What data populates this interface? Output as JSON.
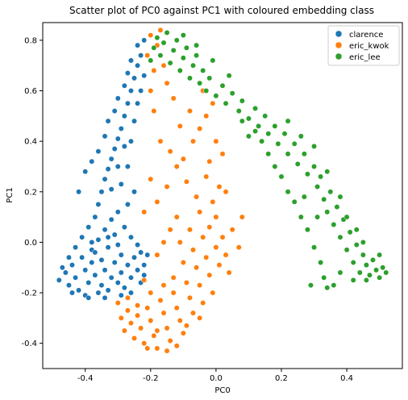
{
  "colors": {
    "clarence": "#1f77b4",
    "eric_kwok": "#ff7f0e",
    "eric_lee": "#2ca02c"
  },
  "chart_data": {
    "type": "scatter",
    "title": "Scatter plot of PC0 against PC1 with coloured embedding class",
    "xlabel": "PC0",
    "ylabel": "PC1",
    "xlim": [
      -0.53,
      0.57
    ],
    "ylim": [
      -0.5,
      0.87
    ],
    "xticks": [
      "-0.4",
      "-0.2",
      "0.0",
      "0.2",
      "0.4"
    ],
    "xtick_values": [
      -0.4,
      -0.2,
      0.0,
      0.2,
      0.4
    ],
    "yticks": [
      "-0.4",
      "-0.2",
      "0.0",
      "0.2",
      "0.4",
      "0.6",
      "0.8"
    ],
    "ytick_values": [
      -0.4,
      -0.2,
      0.0,
      0.2,
      0.4,
      0.6,
      0.8
    ],
    "grid": false,
    "legend": "top-right",
    "series": [
      {
        "name": "clarence",
        "color": "#1f77b4",
        "points": [
          [
            -0.48,
            -0.15
          ],
          [
            -0.46,
            -0.12
          ],
          [
            -0.45,
            -0.17
          ],
          [
            -0.44,
            -0.09
          ],
          [
            -0.43,
            -0.14
          ],
          [
            -0.42,
            -0.19
          ],
          [
            -0.41,
            -0.06
          ],
          [
            -0.4,
            -0.11
          ],
          [
            -0.4,
            -0.21
          ],
          [
            -0.39,
            -0.16
          ],
          [
            -0.38,
            -0.08
          ],
          [
            -0.38,
            -0.03
          ],
          [
            -0.37,
            -0.13
          ],
          [
            -0.36,
            -0.2
          ],
          [
            -0.36,
            0.01
          ],
          [
            -0.35,
            -0.07
          ],
          [
            -0.35,
            -0.17
          ],
          [
            -0.34,
            0.05
          ],
          [
            -0.34,
            -0.11
          ],
          [
            -0.33,
            -0.02
          ],
          [
            -0.33,
            -0.19
          ],
          [
            -0.32,
            0.09
          ],
          [
            -0.32,
            -0.14
          ],
          [
            -0.31,
            0.03
          ],
          [
            -0.31,
            -0.08
          ],
          [
            -0.3,
            -0.16
          ],
          [
            -0.3,
            0.12
          ],
          [
            -0.29,
            -0.05
          ],
          [
            -0.29,
            -0.12
          ],
          [
            -0.28,
            0.06
          ],
          [
            -0.28,
            -0.18
          ],
          [
            -0.27,
            -0.09
          ],
          [
            -0.27,
            0.15
          ],
          [
            -0.26,
            -0.14
          ],
          [
            -0.25,
            -0.06
          ],
          [
            -0.25,
            0.2
          ],
          [
            -0.24,
            -0.11
          ],
          [
            -0.23,
            -0.04
          ],
          [
            -0.22,
            -0.09
          ],
          [
            -0.21,
            -0.05
          ],
          [
            -0.41,
            0.02
          ],
          [
            -0.39,
            0.06
          ],
          [
            -0.37,
            0.1
          ],
          [
            -0.36,
            0.15
          ],
          [
            -0.35,
            0.2
          ],
          [
            -0.34,
            0.25
          ],
          [
            -0.33,
            0.29
          ],
          [
            -0.32,
            0.33
          ],
          [
            -0.31,
            0.37
          ],
          [
            -0.3,
            0.41
          ],
          [
            -0.29,
            0.45
          ],
          [
            -0.28,
            0.5
          ],
          [
            -0.27,
            0.55
          ],
          [
            -0.26,
            0.6
          ],
          [
            -0.25,
            0.65
          ],
          [
            -0.24,
            0.7
          ],
          [
            -0.23,
            0.74
          ],
          [
            -0.24,
            0.78
          ],
          [
            -0.22,
            0.8
          ],
          [
            -0.4,
            0.28
          ],
          [
            -0.42,
            0.2
          ],
          [
            -0.38,
            0.32
          ],
          [
            -0.36,
            0.36
          ],
          [
            -0.34,
            0.42
          ],
          [
            -0.33,
            0.48
          ],
          [
            -0.31,
            0.52
          ],
          [
            -0.3,
            0.57
          ],
          [
            -0.28,
            0.62
          ],
          [
            -0.27,
            0.67
          ],
          [
            -0.26,
            0.72
          ],
          [
            -0.29,
            0.23
          ],
          [
            -0.3,
            0.3
          ],
          [
            -0.32,
            0.21
          ],
          [
            -0.27,
            0.3
          ],
          [
            -0.26,
            0.4
          ],
          [
            -0.25,
            0.48
          ],
          [
            -0.24,
            0.55
          ],
          [
            -0.23,
            0.6
          ],
          [
            -0.22,
            0.66
          ],
          [
            -0.28,
            0.38
          ],
          [
            -0.37,
            -0.04
          ],
          [
            -0.43,
            -0.02
          ],
          [
            -0.45,
            -0.06
          ],
          [
            -0.47,
            -0.1
          ],
          [
            -0.44,
            -0.2
          ],
          [
            -0.39,
            -0.22
          ],
          [
            -0.34,
            -0.22
          ],
          [
            -0.29,
            -0.21
          ],
          [
            -0.26,
            -0.2
          ],
          [
            -0.23,
            -0.16
          ],
          [
            -0.22,
            -0.13
          ],
          [
            -0.24,
            -0.01
          ],
          [
            -0.26,
            0.02
          ],
          [
            -0.3,
            -0.01
          ],
          [
            -0.33,
            0.02
          ],
          [
            -0.38,
            0.0
          ]
        ]
      },
      {
        "name": "eric_kwok",
        "color": "#ff7f0e",
        "points": [
          [
            -0.3,
            -0.24
          ],
          [
            -0.29,
            -0.3
          ],
          [
            -0.28,
            -0.35
          ],
          [
            -0.27,
            -0.27
          ],
          [
            -0.26,
            -0.32
          ],
          [
            -0.25,
            -0.38
          ],
          [
            -0.24,
            -0.29
          ],
          [
            -0.23,
            -0.34
          ],
          [
            -0.22,
            -0.4
          ],
          [
            -0.21,
            -0.26
          ],
          [
            -0.2,
            -0.31
          ],
          [
            -0.19,
            -0.37
          ],
          [
            -0.18,
            -0.42
          ],
          [
            -0.17,
            -0.23
          ],
          [
            -0.16,
            -0.28
          ],
          [
            -0.15,
            -0.34
          ],
          [
            -0.14,
            -0.39
          ],
          [
            -0.13,
            -0.2
          ],
          [
            -0.12,
            -0.26
          ],
          [
            -0.11,
            -0.31
          ],
          [
            -0.1,
            -0.36
          ],
          [
            -0.09,
            -0.16
          ],
          [
            -0.08,
            -0.22
          ],
          [
            -0.07,
            -0.28
          ],
          [
            -0.06,
            -0.1
          ],
          [
            -0.05,
            -0.17
          ],
          [
            -0.04,
            -0.24
          ],
          [
            -0.03,
            -0.06
          ],
          [
            -0.02,
            -0.13
          ],
          [
            -0.01,
            -0.2
          ],
          [
            0.0,
            -0.02
          ],
          [
            0.01,
            -0.09
          ],
          [
            0.02,
            0.02
          ],
          [
            0.03,
            -0.05
          ],
          [
            0.04,
            -0.12
          ],
          [
            -0.21,
            -0.42
          ],
          [
            -0.18,
            -0.35
          ],
          [
            -0.15,
            -0.43
          ],
          [
            -0.12,
            -0.41
          ],
          [
            -0.09,
            -0.33
          ],
          [
            -0.05,
            -0.3
          ],
          [
            -0.27,
            -0.22
          ],
          [
            -0.24,
            -0.25
          ],
          [
            -0.2,
            -0.2
          ],
          [
            -0.16,
            -0.17
          ],
          [
            -0.13,
            -0.14
          ],
          [
            -0.1,
            -0.08
          ],
          [
            -0.07,
            -0.03
          ],
          [
            -0.04,
            0.02
          ],
          [
            -0.02,
            0.06
          ],
          [
            0.0,
            0.1
          ],
          [
            -0.01,
            0.16
          ],
          [
            0.01,
            0.22
          ],
          [
            -0.03,
            0.26
          ],
          [
            0.03,
            0.2
          ],
          [
            -0.05,
            0.12
          ],
          [
            -0.08,
            0.05
          ],
          [
            -0.11,
            0.0
          ],
          [
            0.05,
            0.05
          ],
          [
            0.07,
            -0.02
          ],
          [
            0.08,
            0.1
          ],
          [
            -0.06,
            0.18
          ],
          [
            -0.09,
            0.24
          ],
          [
            -0.12,
            0.3
          ],
          [
            -0.14,
            0.36
          ],
          [
            -0.1,
            0.33
          ],
          [
            -0.07,
            0.4
          ],
          [
            -0.05,
            0.45
          ],
          [
            -0.03,
            0.5
          ],
          [
            -0.01,
            0.55
          ],
          [
            -0.04,
            0.6
          ],
          [
            -0.08,
            0.52
          ],
          [
            -0.11,
            0.46
          ],
          [
            -0.15,
            0.22
          ],
          [
            -0.18,
            0.16
          ],
          [
            -0.2,
            0.25
          ],
          [
            -0.22,
            0.12
          ],
          [
            -0.17,
            0.4
          ],
          [
            -0.19,
            0.52
          ],
          [
            -0.2,
            0.6
          ],
          [
            -0.19,
            0.68
          ],
          [
            -0.21,
            0.74
          ],
          [
            -0.18,
            0.78
          ],
          [
            -0.17,
            0.84
          ],
          [
            -0.2,
            0.82
          ],
          [
            -0.16,
            0.7
          ],
          [
            -0.15,
            0.63
          ],
          [
            -0.13,
            0.57
          ],
          [
            0.0,
            0.4
          ],
          [
            0.02,
            0.35
          ],
          [
            -0.02,
            0.32
          ],
          [
            -0.12,
            0.1
          ],
          [
            -0.14,
            0.05
          ],
          [
            -0.16,
            0.0
          ],
          [
            -0.18,
            -0.05
          ],
          [
            -0.22,
            -0.15
          ]
        ]
      },
      {
        "name": "eric_lee",
        "color": "#2ca02c",
        "points": [
          [
            -0.2,
            0.72
          ],
          [
            -0.19,
            0.77
          ],
          [
            -0.18,
            0.81
          ],
          [
            -0.17,
            0.74
          ],
          [
            -0.16,
            0.79
          ],
          [
            -0.15,
            0.83
          ],
          [
            -0.14,
            0.71
          ],
          [
            -0.13,
            0.76
          ],
          [
            -0.12,
            0.8
          ],
          [
            -0.11,
            0.68
          ],
          [
            -0.1,
            0.73
          ],
          [
            -0.09,
            0.77
          ],
          [
            -0.08,
            0.65
          ],
          [
            -0.07,
            0.7
          ],
          [
            -0.06,
            0.74
          ],
          [
            -0.05,
            0.63
          ],
          [
            -0.04,
            0.68
          ],
          [
            -0.03,
            0.6
          ],
          [
            -0.02,
            0.65
          ],
          [
            0.0,
            0.58
          ],
          [
            0.02,
            0.62
          ],
          [
            0.03,
            0.55
          ],
          [
            0.05,
            0.59
          ],
          [
            0.07,
            0.52
          ],
          [
            0.08,
            0.56
          ],
          [
            0.1,
            0.49
          ],
          [
            0.12,
            0.53
          ],
          [
            0.13,
            0.46
          ],
          [
            0.15,
            0.5
          ],
          [
            0.16,
            0.43
          ],
          [
            0.18,
            0.46
          ],
          [
            0.19,
            0.39
          ],
          [
            0.21,
            0.43
          ],
          [
            0.22,
            0.35
          ],
          [
            0.24,
            0.39
          ],
          [
            0.25,
            0.31
          ],
          [
            0.27,
            0.35
          ],
          [
            0.28,
            0.27
          ],
          [
            0.3,
            0.3
          ],
          [
            0.31,
            0.22
          ],
          [
            0.32,
            0.26
          ],
          [
            0.33,
            0.17
          ],
          [
            0.34,
            0.12
          ],
          [
            0.35,
            0.2
          ],
          [
            0.36,
            0.07
          ],
          [
            0.37,
            0.14
          ],
          [
            0.38,
            0.02
          ],
          [
            0.39,
            0.09
          ],
          [
            0.4,
            -0.03
          ],
          [
            0.41,
            0.04
          ],
          [
            0.42,
            -0.08
          ],
          [
            0.43,
            -0.01
          ],
          [
            0.44,
            -0.12
          ],
          [
            0.45,
            -0.05
          ],
          [
            0.46,
            -0.09
          ],
          [
            0.47,
            -0.13
          ],
          [
            0.48,
            -0.07
          ],
          [
            0.49,
            -0.11
          ],
          [
            0.5,
            -0.05
          ],
          [
            0.51,
            -0.1
          ],
          [
            0.52,
            -0.12
          ],
          [
            0.5,
            -0.14
          ],
          [
            0.46,
            -0.15
          ],
          [
            0.42,
            -0.15
          ],
          [
            0.38,
            -0.12
          ],
          [
            0.36,
            -0.17
          ],
          [
            0.33,
            -0.14
          ],
          [
            0.32,
            -0.08
          ],
          [
            0.3,
            -0.02
          ],
          [
            0.28,
            0.05
          ],
          [
            0.26,
            0.1
          ],
          [
            0.24,
            0.16
          ],
          [
            0.22,
            0.2
          ],
          [
            0.2,
            0.26
          ],
          [
            0.18,
            0.3
          ],
          [
            0.16,
            0.35
          ],
          [
            0.14,
            0.4
          ],
          [
            0.12,
            0.44
          ],
          [
            0.1,
            0.42
          ],
          [
            0.08,
            0.48
          ],
          [
            0.29,
            -0.17
          ],
          [
            0.34,
            -0.18
          ],
          [
            0.31,
            0.1
          ],
          [
            0.27,
            0.18
          ],
          [
            0.38,
            0.18
          ],
          [
            0.4,
            0.1
          ],
          [
            0.43,
            0.05
          ],
          [
            0.45,
            0.0
          ],
          [
            0.34,
            0.28
          ],
          [
            0.3,
            0.38
          ],
          [
            0.26,
            0.42
          ],
          [
            0.22,
            0.48
          ],
          [
            -0.01,
            0.72
          ],
          [
            -0.1,
            0.82
          ],
          [
            -0.06,
            0.78
          ],
          [
            0.04,
            0.66
          ]
        ]
      }
    ]
  }
}
